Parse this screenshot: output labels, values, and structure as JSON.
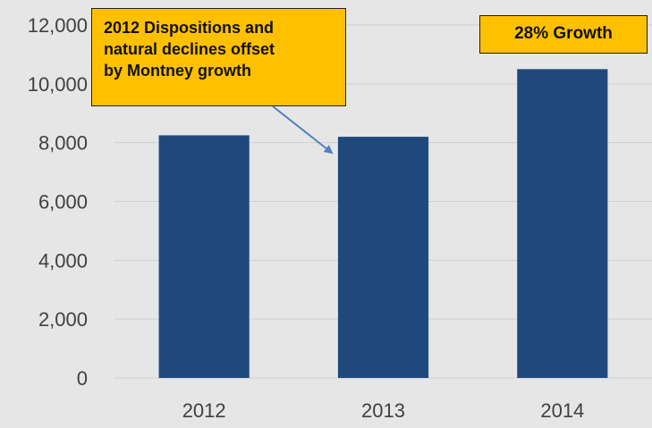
{
  "chart_data": {
    "type": "bar",
    "categories": [
      "2012",
      "2013",
      "2014"
    ],
    "values": [
      8250,
      8200,
      10500
    ],
    "title": "",
    "xlabel": "",
    "ylabel": "",
    "ylim": [
      0,
      12000
    ],
    "yticks": [
      0,
      2000,
      4000,
      6000,
      8000,
      10000,
      12000
    ],
    "ytick_labels": [
      "0",
      "2,000",
      "4,000",
      "6,000",
      "8,000",
      "10,000",
      "12,000"
    ],
    "grid": true,
    "legend": "none",
    "annotations": [
      {
        "id": "dispositions",
        "lines": [
          "2012 Dispositions and",
          "natural declines offset",
          "by Montney growth"
        ]
      },
      {
        "id": "growth",
        "text": "28% Growth"
      }
    ]
  },
  "colors": {
    "background": "#e6e6e6",
    "bar": "#1f497d",
    "grid": "#cfcfcf",
    "annotation_fill": "#ffc000",
    "arrow": "#4f81bd"
  }
}
